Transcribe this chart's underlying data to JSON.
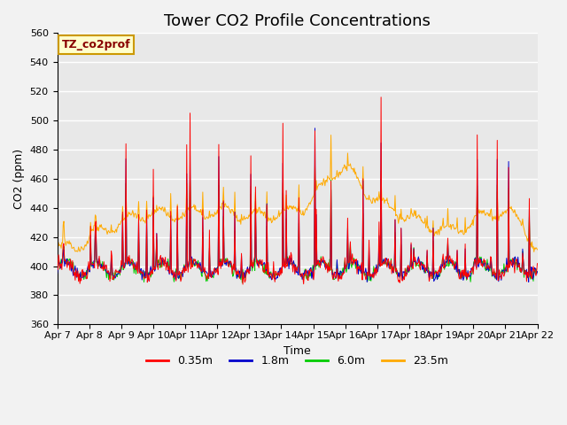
{
  "title": "Tower CO2 Profile Concentrations",
  "xlabel": "Time",
  "ylabel": "CO2 (ppm)",
  "ylim": [
    360,
    560
  ],
  "yticks": [
    360,
    380,
    400,
    420,
    440,
    460,
    480,
    500,
    520,
    540,
    560
  ],
  "x_tick_labels": [
    "Apr 7",
    "Apr 8",
    "Apr 9",
    "Apr 10",
    "Apr 11",
    "Apr 12",
    "Apr 13",
    "Apr 14",
    "Apr 15",
    "Apr 16",
    "Apr 17",
    "Apr 18",
    "Apr 19",
    "Apr 20",
    "Apr 21",
    "Apr 22"
  ],
  "legend_label": "TZ_co2prof",
  "legend_box_color": "#ffffcc",
  "legend_box_edge": "#cc9900",
  "series_labels": [
    "0.35m",
    "1.8m",
    "6.0m",
    "23.5m"
  ],
  "series_colors": [
    "#ff0000",
    "#0000cc",
    "#00cc00",
    "#ffaa00"
  ],
  "bg_color": "#e8e8e8",
  "grid_color": "#ffffff",
  "title_fontsize": 13,
  "axis_fontsize": 9,
  "tick_fontsize": 8,
  "legend_fontsize": 9,
  "figsize": [
    6.4,
    4.8
  ],
  "dpi": 100
}
